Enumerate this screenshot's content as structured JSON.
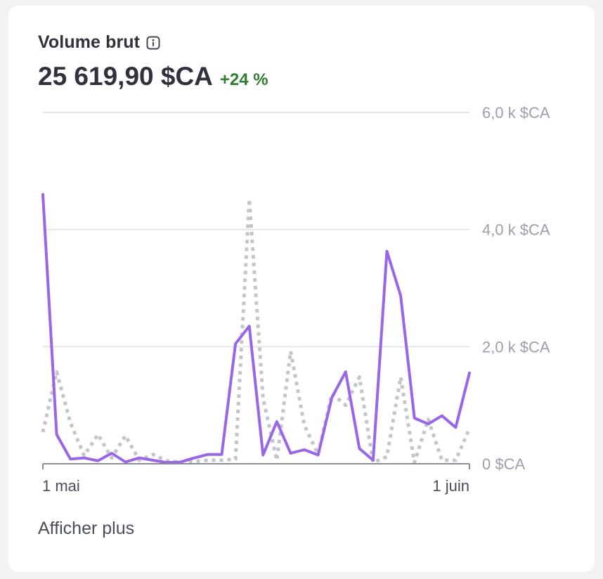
{
  "card": {
    "title": "Volume brut",
    "value": "25 619,90 $CA",
    "change": "+24 %",
    "show_more": "Afficher plus"
  },
  "icons": {
    "info": "info-icon"
  },
  "colors": {
    "current": "#9966e8",
    "previous": "#c2c6cc",
    "grid": "#e3e5e8",
    "axis_text": "#9ca0aa",
    "positive": "#2e7d32"
  },
  "chart_data": {
    "type": "line",
    "x": [
      "1 mai",
      "2",
      "3",
      "4",
      "5",
      "6",
      "7",
      "8",
      "9",
      "10",
      "11",
      "12",
      "13",
      "14",
      "15",
      "16",
      "17",
      "18",
      "19",
      "20",
      "21",
      "22",
      "23",
      "24",
      "25",
      "26",
      "27",
      "28",
      "29",
      "30",
      "31",
      "1 juin"
    ],
    "x_tick_labels": [
      "1 mai",
      "1 juin"
    ],
    "y_tick_labels": [
      "0 $CA",
      "2,0 k $CA",
      "4,0 k $CA",
      "6,0 k $CA"
    ],
    "ylim": [
      0,
      6000
    ],
    "grid": true,
    "series": [
      {
        "style": "solid",
        "color": "#9966e8",
        "values": [
          4600,
          500,
          80,
          100,
          50,
          180,
          30,
          100,
          60,
          20,
          30,
          100,
          160,
          160,
          2050,
          2350,
          150,
          720,
          180,
          240,
          150,
          1130,
          1570,
          260,
          60,
          3630,
          2870,
          780,
          680,
          820,
          620,
          1550
        ]
      },
      {
        "style": "dotted",
        "color": "#c2c6cc",
        "values": [
          540,
          1570,
          700,
          140,
          500,
          100,
          480,
          60,
          160,
          50,
          20,
          40,
          60,
          60,
          80,
          4520,
          1120,
          60,
          1920,
          660,
          160,
          1200,
          1000,
          1480,
          20,
          120,
          1480,
          20,
          760,
          60,
          60,
          600
        ]
      }
    ]
  }
}
